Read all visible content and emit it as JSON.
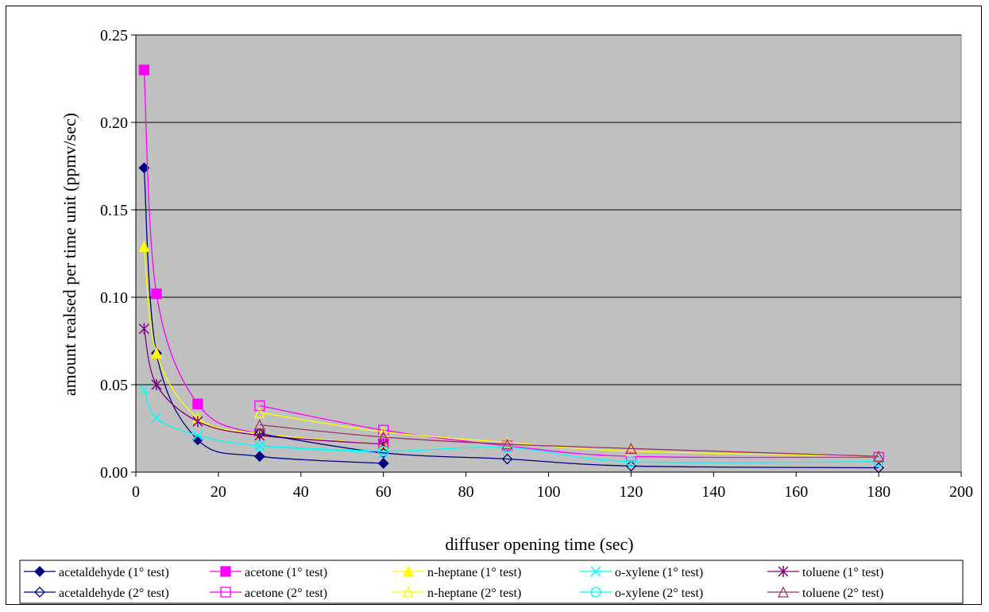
{
  "chart_data": {
    "type": "scatter",
    "title": "",
    "xlabel": "diffuser opening time (sec)",
    "ylabel": "amount realsed per time unit (ppmv/sec)",
    "xlim": [
      0,
      200
    ],
    "ylim": [
      0,
      0.25
    ],
    "xticks": [
      "0",
      "20",
      "40",
      "60",
      "80",
      "100",
      "120",
      "140",
      "160",
      "180",
      "200"
    ],
    "yticks": [
      "0.00",
      "0.05",
      "0.10",
      "0.15",
      "0.20",
      "0.25"
    ],
    "grid": "horizontal",
    "plot_background": "#c0c0c0",
    "legend_position": "bottom",
    "series": [
      {
        "name": "acetaldehyde (1° test)",
        "color": "#000080",
        "marker": "diamond-filled",
        "points": [
          [
            2,
            0.174
          ],
          [
            5,
            0.068
          ],
          [
            15,
            0.0185
          ],
          [
            30,
            0.009
          ],
          [
            60,
            0.005
          ]
        ]
      },
      {
        "name": "acetone (1° test)",
        "color": "#ff00ff",
        "marker": "square-filled",
        "points": [
          [
            2,
            0.23
          ],
          [
            5,
            0.102
          ],
          [
            15,
            0.039
          ],
          [
            30,
            0.022
          ],
          [
            60,
            0.016
          ]
        ]
      },
      {
        "name": "n-heptane (1° test)",
        "color": "#ffff00",
        "marker": "triangle-filled",
        "points": [
          [
            2,
            0.129
          ],
          [
            5,
            0.068
          ],
          [
            15,
            0.031
          ],
          [
            30,
            0.022
          ],
          [
            60,
            0.016
          ]
        ]
      },
      {
        "name": "o-xylene (1° test)",
        "color": "#00ffff",
        "marker": "x",
        "points": [
          [
            2,
            0.047
          ],
          [
            5,
            0.031
          ],
          [
            15,
            0.021
          ],
          [
            30,
            0.015
          ],
          [
            60,
            0.011
          ]
        ]
      },
      {
        "name": "toluene (1° test)",
        "color": "#800080",
        "marker": "star",
        "points": [
          [
            2,
            0.082
          ],
          [
            5,
            0.05
          ],
          [
            15,
            0.029
          ],
          [
            30,
            0.021
          ],
          [
            60,
            0.016
          ]
        ]
      },
      {
        "name": "acetaldehyde (2° test)",
        "color": "#000080",
        "marker": "diamond-open",
        "points": [
          [
            30,
            0.022
          ],
          [
            60,
            0.011
          ],
          [
            90,
            0.0075
          ],
          [
            120,
            0.0035
          ],
          [
            180,
            0.0025
          ]
        ]
      },
      {
        "name": "acetone (2° test)",
        "color": "#ff00ff",
        "marker": "square-open",
        "points": [
          [
            30,
            0.038
          ],
          [
            60,
            0.024
          ],
          [
            90,
            0.015
          ],
          [
            120,
            0.009
          ],
          [
            180,
            0.0085
          ]
        ]
      },
      {
        "name": "n-heptane (2° test)",
        "color": "#ffff00",
        "marker": "triangle-open",
        "points": [
          [
            30,
            0.034
          ],
          [
            60,
            0.023
          ],
          [
            90,
            0.017
          ],
          [
            120,
            0.012
          ],
          [
            180,
            0.009
          ]
        ]
      },
      {
        "name": "o-xylene (2° test)",
        "color": "#00ffff",
        "marker": "circle-open",
        "points": [
          [
            30,
            0.015
          ],
          [
            60,
            0.012
          ],
          [
            90,
            0.014
          ],
          [
            120,
            0.006
          ],
          [
            180,
            0.006
          ]
        ]
      },
      {
        "name": "toluene (2° test)",
        "color": "#993366",
        "marker": "triangle-open",
        "points": [
          [
            30,
            0.027
          ],
          [
            60,
            0.02
          ],
          [
            90,
            0.016
          ],
          [
            120,
            0.0135
          ],
          [
            180,
            0.009
          ]
        ]
      }
    ]
  }
}
